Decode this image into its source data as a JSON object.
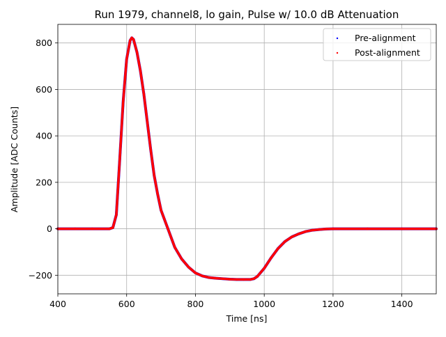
{
  "chart_data": {
    "type": "scatter",
    "title": "Run 1979, channel8, lo gain, Pulse w/ 10.0 dB Attenuation",
    "xlabel": "Time [ns]",
    "ylabel": "Amplitude [ADC Counts]",
    "xlim": [
      400,
      1500
    ],
    "ylim": [
      -280,
      880
    ],
    "xticks": [
      400,
      600,
      800,
      1000,
      1200,
      1400
    ],
    "yticks": [
      -200,
      0,
      200,
      400,
      600,
      800
    ],
    "grid": true,
    "legend": "top-right",
    "series": [
      {
        "name": "Pre-alignment",
        "color": "#0000ff",
        "marker": "point",
        "x": [
          400,
          450,
          500,
          550,
          560,
          570,
          580,
          590,
          600,
          610,
          615,
          620,
          630,
          640,
          650,
          660,
          670,
          680,
          690,
          700,
          720,
          740,
          760,
          780,
          800,
          820,
          840,
          860,
          880,
          900,
          920,
          940,
          960,
          970,
          980,
          1000,
          1020,
          1040,
          1060,
          1080,
          1100,
          1120,
          1140,
          1160,
          1180,
          1200,
          1300,
          1400,
          1500
        ],
        "y": [
          0,
          0,
          0,
          0,
          5,
          60,
          300,
          550,
          730,
          810,
          822,
          815,
          760,
          680,
          580,
          460,
          340,
          230,
          150,
          80,
          0,
          -80,
          -130,
          -165,
          -190,
          -203,
          -210,
          -213,
          -215,
          -217,
          -218,
          -218,
          -218,
          -215,
          -205,
          -170,
          -125,
          -85,
          -55,
          -35,
          -22,
          -12,
          -6,
          -3,
          -1,
          0,
          0,
          0,
          0
        ]
      },
      {
        "name": "Post-alignment",
        "color": "#ff0000",
        "marker": "point",
        "x": [
          400,
          450,
          500,
          550,
          560,
          570,
          580,
          590,
          600,
          610,
          615,
          620,
          630,
          640,
          650,
          660,
          670,
          680,
          690,
          700,
          720,
          740,
          760,
          780,
          800,
          820,
          840,
          860,
          880,
          900,
          920,
          940,
          960,
          970,
          980,
          1000,
          1020,
          1040,
          1060,
          1080,
          1100,
          1120,
          1140,
          1160,
          1180,
          1200,
          1300,
          1400,
          1500
        ],
        "y": [
          0,
          0,
          0,
          0,
          5,
          60,
          300,
          550,
          730,
          810,
          822,
          815,
          760,
          680,
          580,
          460,
          340,
          230,
          150,
          80,
          0,
          -80,
          -130,
          -165,
          -190,
          -203,
          -210,
          -213,
          -215,
          -217,
          -218,
          -218,
          -218,
          -215,
          -205,
          -170,
          -125,
          -85,
          -55,
          -35,
          -22,
          -12,
          -6,
          -3,
          -1,
          0,
          0,
          0,
          0
        ]
      }
    ]
  }
}
